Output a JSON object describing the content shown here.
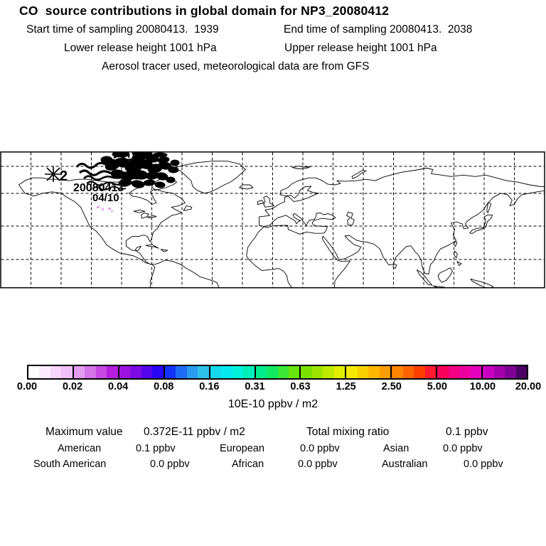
{
  "header": {
    "title": "CO  source contributions in global domain for NP3_20080412",
    "start_time": "Start time of sampling 20080413.  1939",
    "end_time": "End time of sampling 20080413.  2038",
    "lower_release": "Lower release height 1001 hPa",
    "upper_release": "Upper release height 1001 hPa",
    "tracer_note": "Aerosol tracer used, meteorological data are from GFS"
  },
  "map": {
    "release_marker_number": "2",
    "overlay_date_line1": "20080413",
    "overlay_date_line2": "04/10",
    "trace_color": "#eda4ef"
  },
  "colorbar": {
    "title": "10E-10 ppbv / m2",
    "ticks": [
      "0.00",
      "0.02",
      "0.04",
      "0.08",
      "0.16",
      "0.31",
      "0.63",
      "1.25",
      "2.50",
      "5.00",
      "10.00",
      "20.00"
    ],
    "segments": [
      [
        "#ffffff",
        "#fdeafe",
        "#f7d5fb",
        "#efbff7"
      ],
      [
        "#e39bef",
        "#d573e9",
        "#c649e4",
        "#b51ede"
      ],
      [
        "#9d13e0",
        "#7d0be6",
        "#5505ee",
        "#2a06f6"
      ],
      [
        "#1433fa",
        "#1e6bf5",
        "#289cef",
        "#2fc0ea"
      ],
      [
        "#14d8ee",
        "#04e9ee",
        "#00f2da",
        "#00efb8"
      ],
      [
        "#00ec8c",
        "#10e960",
        "#3ce634",
        "#68e30c"
      ],
      [
        "#7ce000",
        "#9ee400",
        "#c0e900",
        "#e2ee00"
      ],
      [
        "#f7ea00",
        "#fad100",
        "#fdb800",
        "#ff9e00"
      ],
      [
        "#ff8400",
        "#ff6300",
        "#ff3e00",
        "#fb1a30"
      ],
      [
        "#f7005b",
        "#f20080",
        "#ed00a0",
        "#e700be"
      ],
      [
        "#c900c4",
        "#a500ae",
        "#7f0096",
        "#4a0064"
      ]
    ]
  },
  "statistics": {
    "max_label": "Maximum value",
    "max_value": "0.372E-11 ppbv / m2",
    "total_label": "Total mixing ratio",
    "total_value": "0.1 ppbv",
    "regions": [
      {
        "name": "American",
        "value": "0.1 ppbv"
      },
      {
        "name": "European",
        "value": "0.0 ppbv"
      },
      {
        "name": "Asian",
        "value": "0.0 ppbv"
      },
      {
        "name": "South American",
        "value": "0.0 ppbv"
      },
      {
        "name": "African",
        "value": "0.0 ppbv"
      },
      {
        "name": "Australian",
        "value": "0.0 ppbv"
      }
    ]
  }
}
